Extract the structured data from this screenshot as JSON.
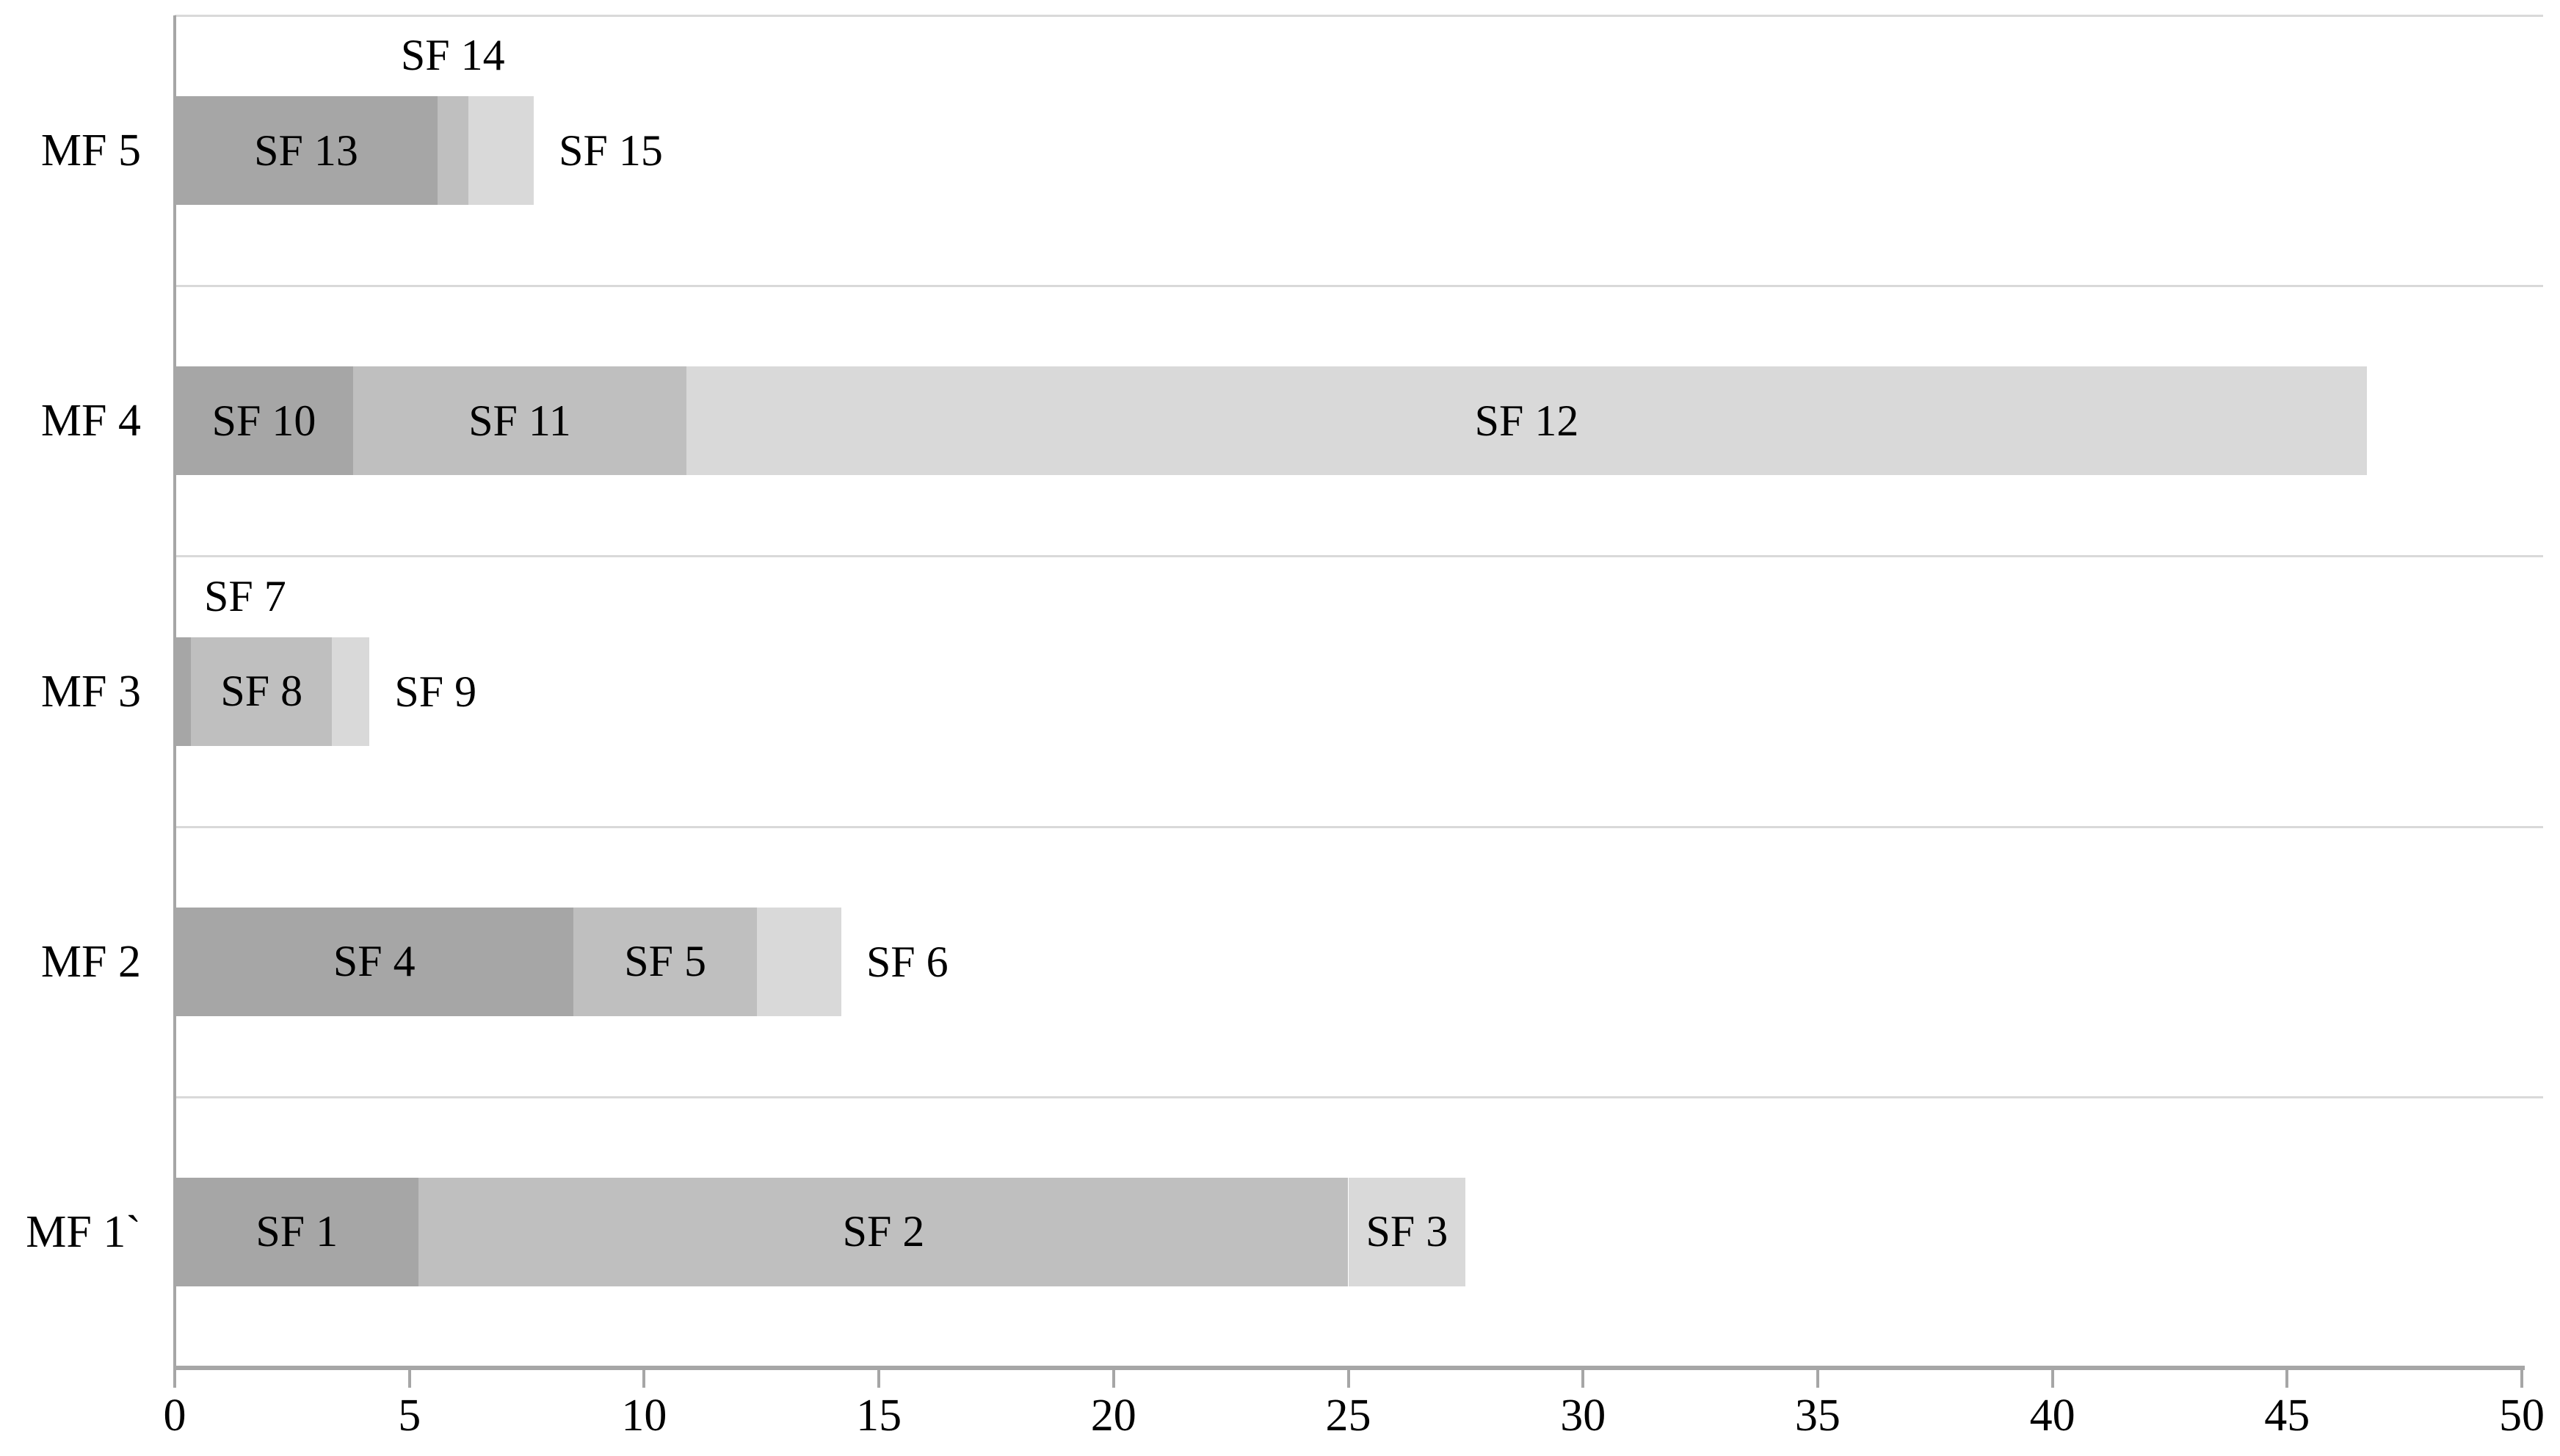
{
  "chart_data": {
    "type": "bar",
    "orientation": "horizontal",
    "stacked": true,
    "title": "",
    "xlabel": "",
    "ylabel": "",
    "xlim": [
      0,
      50
    ],
    "x_ticks": [
      0,
      5,
      10,
      15,
      20,
      25,
      30,
      35,
      40,
      45,
      50
    ],
    "grid": "horizontal-category-separators",
    "legend": "none",
    "categories_top_to_bottom": [
      "MF 5",
      "MF 4",
      "MF 3",
      "MF 2",
      "MF 1`"
    ],
    "rows": [
      {
        "category": "MF 5",
        "segments": [
          {
            "label": "SF 13",
            "value": 5.6,
            "series": 1,
            "label_position": "inside"
          },
          {
            "label": "SF 14",
            "value": 0.65,
            "series": 2,
            "label_position": "above"
          },
          {
            "label": "SF 15",
            "value": 1.4,
            "series": 3,
            "label_position": "right"
          }
        ]
      },
      {
        "category": "MF 4",
        "segments": [
          {
            "label": "SF 10",
            "value": 3.8,
            "series": 1,
            "label_position": "inside"
          },
          {
            "label": "SF 11",
            "value": 7.1,
            "series": 2,
            "label_position": "inside"
          },
          {
            "label": "SF 12",
            "value": 35.8,
            "series": 3,
            "label_position": "inside"
          }
        ]
      },
      {
        "category": "MF 3",
        "segments": [
          {
            "label": "SF 7",
            "value": 0.35,
            "series": 1,
            "label_position": "above"
          },
          {
            "label": "SF 8",
            "value": 3.0,
            "series": 2,
            "label_position": "inside"
          },
          {
            "label": "SF 9",
            "value": 0.8,
            "series": 3,
            "label_position": "right"
          }
        ]
      },
      {
        "category": "MF 2",
        "segments": [
          {
            "label": "SF 4",
            "value": 8.5,
            "series": 1,
            "label_position": "inside"
          },
          {
            "label": "SF 5",
            "value": 3.9,
            "series": 2,
            "label_position": "inside"
          },
          {
            "label": "SF 6",
            "value": 1.8,
            "series": 3,
            "label_position": "right"
          }
        ]
      },
      {
        "category": "MF 1`",
        "segments": [
          {
            "label": "SF 1",
            "value": 5.2,
            "series": 1,
            "label_position": "inside"
          },
          {
            "label": "SF 2",
            "value": 19.8,
            "series": 2,
            "label_position": "inside"
          },
          {
            "label": "SF 3",
            "value": 2.5,
            "series": 3,
            "label_position": "inside"
          }
        ]
      }
    ],
    "colors": {
      "series_1": "#a6a6a6",
      "series_2": "#bfbfbf",
      "series_3": "#d9d9d9",
      "axis_line": "#a6a6a6",
      "gridline": "#d9d9d9",
      "text": "#000000",
      "background": "#ffffff"
    }
  }
}
